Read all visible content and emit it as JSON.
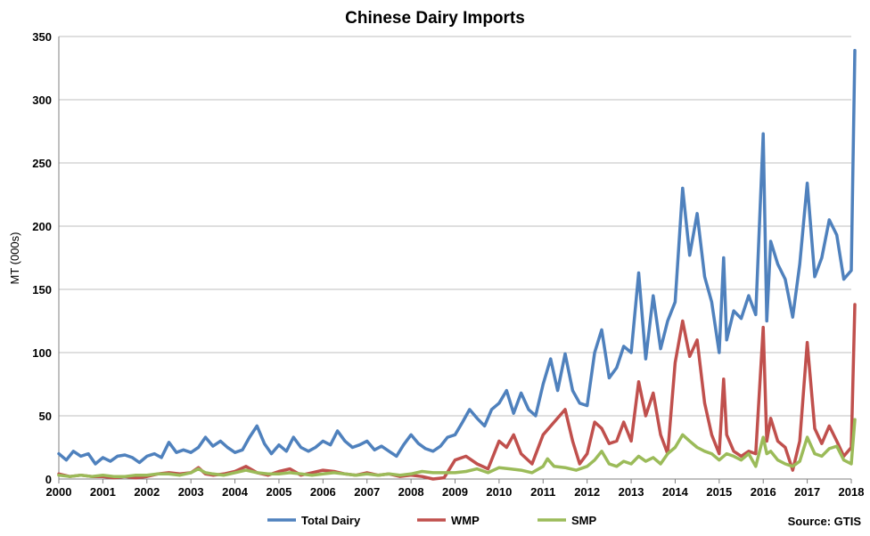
{
  "chart_data": {
    "type": "line",
    "title": "Chinese Dairy Imports",
    "ylabel": "MT (000s)",
    "xlabel": "",
    "xlim": [
      2000,
      2018
    ],
    "ylim": [
      0,
      350
    ],
    "yticks": [
      0,
      50,
      100,
      150,
      200,
      250,
      300,
      350
    ],
    "xticks": [
      "2000",
      "2001",
      "2002",
      "2003",
      "2004",
      "2005",
      "2006",
      "2007",
      "2008",
      "2009",
      "2010",
      "2011",
      "2012",
      "2013",
      "2014",
      "2015",
      "2016",
      "2017",
      "2018"
    ],
    "grid": "horizontal",
    "legend_position": "bottom",
    "source": "Source: GTIS",
    "series": [
      {
        "name": "Total Dairy",
        "color": "#4f81bd",
        "points": [
          [
            2000.0,
            20
          ],
          [
            2000.17,
            15
          ],
          [
            2000.33,
            22
          ],
          [
            2000.5,
            18
          ],
          [
            2000.67,
            20
          ],
          [
            2000.83,
            12
          ],
          [
            2001.0,
            17
          ],
          [
            2001.17,
            14
          ],
          [
            2001.33,
            18
          ],
          [
            2001.5,
            19
          ],
          [
            2001.67,
            17
          ],
          [
            2001.83,
            13
          ],
          [
            2002.0,
            18
          ],
          [
            2002.17,
            20
          ],
          [
            2002.33,
            17
          ],
          [
            2002.5,
            29
          ],
          [
            2002.67,
            21
          ],
          [
            2002.83,
            23
          ],
          [
            2003.0,
            21
          ],
          [
            2003.17,
            25
          ],
          [
            2003.33,
            33
          ],
          [
            2003.5,
            26
          ],
          [
            2003.67,
            30
          ],
          [
            2003.83,
            25
          ],
          [
            2004.0,
            21
          ],
          [
            2004.17,
            23
          ],
          [
            2004.33,
            33
          ],
          [
            2004.5,
            42
          ],
          [
            2004.67,
            28
          ],
          [
            2004.83,
            20
          ],
          [
            2005.0,
            27
          ],
          [
            2005.17,
            22
          ],
          [
            2005.33,
            33
          ],
          [
            2005.5,
            25
          ],
          [
            2005.67,
            22
          ],
          [
            2005.83,
            25
          ],
          [
            2006.0,
            30
          ],
          [
            2006.17,
            27
          ],
          [
            2006.33,
            38
          ],
          [
            2006.5,
            30
          ],
          [
            2006.67,
            25
          ],
          [
            2006.83,
            27
          ],
          [
            2007.0,
            30
          ],
          [
            2007.17,
            23
          ],
          [
            2007.33,
            26
          ],
          [
            2007.5,
            22
          ],
          [
            2007.67,
            18
          ],
          [
            2007.83,
            27
          ],
          [
            2008.0,
            35
          ],
          [
            2008.17,
            28
          ],
          [
            2008.33,
            24
          ],
          [
            2008.5,
            22
          ],
          [
            2008.67,
            26
          ],
          [
            2008.83,
            33
          ],
          [
            2009.0,
            35
          ],
          [
            2009.17,
            45
          ],
          [
            2009.33,
            55
          ],
          [
            2009.5,
            48
          ],
          [
            2009.67,
            42
          ],
          [
            2009.83,
            55
          ],
          [
            2010.0,
            60
          ],
          [
            2010.17,
            70
          ],
          [
            2010.33,
            52
          ],
          [
            2010.5,
            68
          ],
          [
            2010.67,
            55
          ],
          [
            2010.83,
            50
          ],
          [
            2011.0,
            75
          ],
          [
            2011.17,
            95
          ],
          [
            2011.33,
            70
          ],
          [
            2011.5,
            99
          ],
          [
            2011.67,
            70
          ],
          [
            2011.83,
            60
          ],
          [
            2012.0,
            58
          ],
          [
            2012.17,
            100
          ],
          [
            2012.33,
            118
          ],
          [
            2012.5,
            80
          ],
          [
            2012.67,
            88
          ],
          [
            2012.83,
            105
          ],
          [
            2013.0,
            100
          ],
          [
            2013.17,
            163
          ],
          [
            2013.33,
            95
          ],
          [
            2013.5,
            145
          ],
          [
            2013.67,
            103
          ],
          [
            2013.83,
            125
          ],
          [
            2014.0,
            140
          ],
          [
            2014.17,
            230
          ],
          [
            2014.33,
            177
          ],
          [
            2014.5,
            210
          ],
          [
            2014.67,
            160
          ],
          [
            2014.83,
            140
          ],
          [
            2015.0,
            100
          ],
          [
            2015.1,
            175
          ],
          [
            2015.17,
            110
          ],
          [
            2015.33,
            133
          ],
          [
            2015.5,
            127
          ],
          [
            2015.67,
            145
          ],
          [
            2015.83,
            130
          ],
          [
            2016.0,
            273
          ],
          [
            2016.08,
            125
          ],
          [
            2016.17,
            188
          ],
          [
            2016.33,
            170
          ],
          [
            2016.5,
            158
          ],
          [
            2016.67,
            128
          ],
          [
            2016.83,
            170
          ],
          [
            2017.0,
            234
          ],
          [
            2017.17,
            160
          ],
          [
            2017.33,
            175
          ],
          [
            2017.5,
            205
          ],
          [
            2017.67,
            193
          ],
          [
            2017.83,
            158
          ],
          [
            2018.0,
            165
          ],
          [
            2018.08,
            339
          ]
        ]
      },
      {
        "name": "WMP",
        "color": "#c0504d",
        "points": [
          [
            2000.0,
            4
          ],
          [
            2000.25,
            2
          ],
          [
            2000.5,
            3
          ],
          [
            2000.75,
            2
          ],
          [
            2001.0,
            2
          ],
          [
            2001.25,
            1
          ],
          [
            2001.5,
            2
          ],
          [
            2001.75,
            1
          ],
          [
            2002.0,
            2
          ],
          [
            2002.25,
            4
          ],
          [
            2002.5,
            5
          ],
          [
            2002.75,
            4
          ],
          [
            2003.0,
            5
          ],
          [
            2003.17,
            9
          ],
          [
            2003.33,
            4
          ],
          [
            2003.5,
            3
          ],
          [
            2003.75,
            4
          ],
          [
            2004.0,
            6
          ],
          [
            2004.25,
            10
          ],
          [
            2004.5,
            5
          ],
          [
            2004.75,
            3
          ],
          [
            2005.0,
            6
          ],
          [
            2005.25,
            8
          ],
          [
            2005.5,
            3
          ],
          [
            2005.75,
            5
          ],
          [
            2006.0,
            7
          ],
          [
            2006.25,
            6
          ],
          [
            2006.5,
            4
          ],
          [
            2006.75,
            3
          ],
          [
            2007.0,
            5
          ],
          [
            2007.25,
            3
          ],
          [
            2007.5,
            4
          ],
          [
            2007.75,
            2
          ],
          [
            2008.0,
            3
          ],
          [
            2008.25,
            2
          ],
          [
            2008.5,
            0
          ],
          [
            2008.75,
            1
          ],
          [
            2009.0,
            15
          ],
          [
            2009.25,
            18
          ],
          [
            2009.5,
            12
          ],
          [
            2009.75,
            8
          ],
          [
            2010.0,
            30
          ],
          [
            2010.17,
            25
          ],
          [
            2010.33,
            35
          ],
          [
            2010.5,
            20
          ],
          [
            2010.75,
            12
          ],
          [
            2011.0,
            35
          ],
          [
            2011.25,
            45
          ],
          [
            2011.5,
            55
          ],
          [
            2011.67,
            30
          ],
          [
            2011.83,
            12
          ],
          [
            2012.0,
            20
          ],
          [
            2012.17,
            45
          ],
          [
            2012.33,
            40
          ],
          [
            2012.5,
            28
          ],
          [
            2012.67,
            30
          ],
          [
            2012.83,
            45
          ],
          [
            2013.0,
            30
          ],
          [
            2013.17,
            77
          ],
          [
            2013.33,
            50
          ],
          [
            2013.5,
            68
          ],
          [
            2013.67,
            35
          ],
          [
            2013.83,
            20
          ],
          [
            2014.0,
            92
          ],
          [
            2014.17,
            125
          ],
          [
            2014.33,
            97
          ],
          [
            2014.5,
            110
          ],
          [
            2014.67,
            60
          ],
          [
            2014.83,
            35
          ],
          [
            2015.0,
            20
          ],
          [
            2015.1,
            79
          ],
          [
            2015.17,
            35
          ],
          [
            2015.33,
            22
          ],
          [
            2015.5,
            18
          ],
          [
            2015.67,
            22
          ],
          [
            2015.83,
            20
          ],
          [
            2016.0,
            120
          ],
          [
            2016.08,
            30
          ],
          [
            2016.17,
            48
          ],
          [
            2016.33,
            30
          ],
          [
            2016.5,
            25
          ],
          [
            2016.67,
            7
          ],
          [
            2016.83,
            30
          ],
          [
            2017.0,
            108
          ],
          [
            2017.17,
            40
          ],
          [
            2017.33,
            28
          ],
          [
            2017.5,
            42
          ],
          [
            2017.67,
            30
          ],
          [
            2017.83,
            18
          ],
          [
            2018.0,
            25
          ],
          [
            2018.08,
            138
          ]
        ]
      },
      {
        "name": "SMP",
        "color": "#9bbb59",
        "points": [
          [
            2000.0,
            3
          ],
          [
            2000.25,
            2
          ],
          [
            2000.5,
            3
          ],
          [
            2000.75,
            2
          ],
          [
            2001.0,
            3
          ],
          [
            2001.25,
            2
          ],
          [
            2001.5,
            2
          ],
          [
            2001.75,
            3
          ],
          [
            2002.0,
            3
          ],
          [
            2002.25,
            4
          ],
          [
            2002.5,
            4
          ],
          [
            2002.75,
            3
          ],
          [
            2003.0,
            5
          ],
          [
            2003.17,
            8
          ],
          [
            2003.33,
            5
          ],
          [
            2003.5,
            4
          ],
          [
            2003.75,
            3
          ],
          [
            2004.0,
            5
          ],
          [
            2004.25,
            7
          ],
          [
            2004.5,
            5
          ],
          [
            2004.75,
            4
          ],
          [
            2005.0,
            4
          ],
          [
            2005.25,
            5
          ],
          [
            2005.5,
            4
          ],
          [
            2005.75,
            3
          ],
          [
            2006.0,
            4
          ],
          [
            2006.25,
            5
          ],
          [
            2006.5,
            4
          ],
          [
            2006.75,
            3
          ],
          [
            2007.0,
            4
          ],
          [
            2007.25,
            3
          ],
          [
            2007.5,
            4
          ],
          [
            2007.75,
            3
          ],
          [
            2008.0,
            4
          ],
          [
            2008.25,
            6
          ],
          [
            2008.5,
            5
          ],
          [
            2008.75,
            5
          ],
          [
            2009.0,
            5
          ],
          [
            2009.25,
            6
          ],
          [
            2009.5,
            8
          ],
          [
            2009.75,
            5
          ],
          [
            2010.0,
            9
          ],
          [
            2010.25,
            8
          ],
          [
            2010.5,
            7
          ],
          [
            2010.75,
            5
          ],
          [
            2011.0,
            10
          ],
          [
            2011.1,
            16
          ],
          [
            2011.25,
            10
          ],
          [
            2011.5,
            9
          ],
          [
            2011.75,
            7
          ],
          [
            2012.0,
            10
          ],
          [
            2012.17,
            15
          ],
          [
            2012.33,
            22
          ],
          [
            2012.5,
            12
          ],
          [
            2012.67,
            10
          ],
          [
            2012.83,
            14
          ],
          [
            2013.0,
            12
          ],
          [
            2013.17,
            18
          ],
          [
            2013.33,
            14
          ],
          [
            2013.5,
            17
          ],
          [
            2013.67,
            12
          ],
          [
            2013.83,
            20
          ],
          [
            2014.0,
            25
          ],
          [
            2014.17,
            35
          ],
          [
            2014.33,
            30
          ],
          [
            2014.5,
            25
          ],
          [
            2014.67,
            22
          ],
          [
            2014.83,
            20
          ],
          [
            2015.0,
            15
          ],
          [
            2015.17,
            20
          ],
          [
            2015.33,
            18
          ],
          [
            2015.5,
            15
          ],
          [
            2015.67,
            20
          ],
          [
            2015.83,
            10
          ],
          [
            2016.0,
            33
          ],
          [
            2016.08,
            20
          ],
          [
            2016.17,
            22
          ],
          [
            2016.33,
            15
          ],
          [
            2016.5,
            12
          ],
          [
            2016.67,
            10
          ],
          [
            2016.83,
            14
          ],
          [
            2017.0,
            33
          ],
          [
            2017.17,
            20
          ],
          [
            2017.33,
            18
          ],
          [
            2017.5,
            24
          ],
          [
            2017.67,
            26
          ],
          [
            2017.83,
            15
          ],
          [
            2018.0,
            12
          ],
          [
            2018.08,
            47
          ]
        ]
      }
    ]
  }
}
